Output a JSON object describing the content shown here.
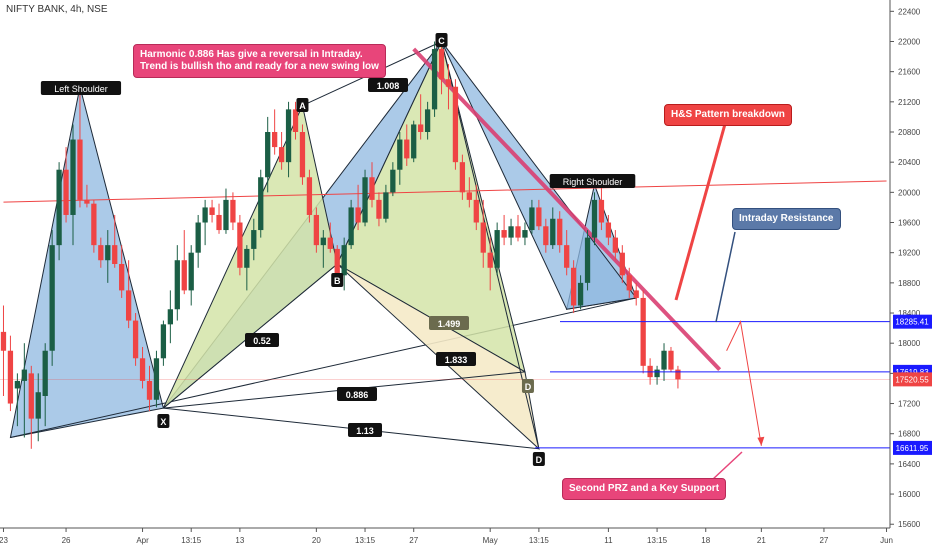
{
  "header": {
    "symbol_title": "NIFTY BANK, 4h, NSE"
  },
  "callouts": {
    "harmonic": "Harmonic 0.886 Has give a reversal in Intraday.\nTrend is bullish tho and ready for a new swing low",
    "hs_breakdown": "H&S Pattern breakdown",
    "intraday_resistance": "Intraday Resistance",
    "second_prz": "Second PRZ and a Key Support"
  },
  "chart_data": {
    "type": "candlestick",
    "title": "NIFTY BANK, 4h, NSE",
    "y_axis": {
      "side": "right",
      "ticks": [
        15600,
        16000,
        16400,
        16800,
        17200,
        17600,
        18000,
        18400,
        18800,
        19200,
        19600,
        20000,
        20400,
        20800,
        21200,
        21600,
        22000,
        22400
      ],
      "ylim": [
        15550,
        22550
      ]
    },
    "x_axis": {
      "tick_labels": [
        "23",
        "26",
        "Apr",
        "13:15",
        "13",
        "20",
        "13:15",
        "27",
        "May",
        "13:15",
        "11",
        "13:15",
        "18",
        "21",
        "27",
        "Jun"
      ],
      "tick_bars": [
        0,
        9,
        20,
        27,
        34,
        45,
        52,
        59,
        70,
        77,
        87,
        94,
        101,
        109,
        118,
        127
      ]
    },
    "candles": [
      {
        "o": 18150,
        "h": 18500,
        "l": 17300,
        "c": 17900
      },
      {
        "o": 17900,
        "h": 18100,
        "l": 17100,
        "c": 17200
      },
      {
        "o": 17400,
        "h": 17600,
        "l": 16900,
        "c": 17500
      },
      {
        "o": 17500,
        "h": 18000,
        "l": 16750,
        "c": 17650
      },
      {
        "o": 17600,
        "h": 17700,
        "l": 16600,
        "c": 17000
      },
      {
        "o": 17000,
        "h": 17600,
        "l": 16700,
        "c": 17350
      },
      {
        "o": 17300,
        "h": 18000,
        "l": 16900,
        "c": 17900
      },
      {
        "o": 17900,
        "h": 19500,
        "l": 17700,
        "c": 19300
      },
      {
        "o": 19300,
        "h": 20400,
        "l": 19100,
        "c": 20300
      },
      {
        "o": 20300,
        "h": 20600,
        "l": 19600,
        "c": 19700
      },
      {
        "o": 19700,
        "h": 20900,
        "l": 19300,
        "c": 20700
      },
      {
        "o": 20700,
        "h": 21400,
        "l": 19800,
        "c": 19900
      },
      {
        "o": 19900,
        "h": 20100,
        "l": 19800,
        "c": 19850
      },
      {
        "o": 19850,
        "h": 19900,
        "l": 19200,
        "c": 19300
      },
      {
        "o": 19300,
        "h": 19400,
        "l": 19000,
        "c": 19100
      },
      {
        "o": 19100,
        "h": 19500,
        "l": 18800,
        "c": 19300
      },
      {
        "o": 19300,
        "h": 19700,
        "l": 19000,
        "c": 19050
      },
      {
        "o": 19050,
        "h": 19300,
        "l": 18600,
        "c": 18700
      },
      {
        "o": 18700,
        "h": 19100,
        "l": 18200,
        "c": 18300
      },
      {
        "o": 18300,
        "h": 18400,
        "l": 17700,
        "c": 17800
      },
      {
        "o": 17800,
        "h": 17950,
        "l": 17400,
        "c": 17500
      },
      {
        "o": 17500,
        "h": 17700,
        "l": 17100,
        "c": 17250
      },
      {
        "o": 17250,
        "h": 17900,
        "l": 17150,
        "c": 17800
      },
      {
        "o": 17800,
        "h": 18300,
        "l": 17700,
        "c": 18250
      },
      {
        "o": 18250,
        "h": 18700,
        "l": 18000,
        "c": 18450
      },
      {
        "o": 18450,
        "h": 19300,
        "l": 18300,
        "c": 19100
      },
      {
        "o": 19100,
        "h": 19500,
        "l": 18650,
        "c": 18700
      },
      {
        "o": 18700,
        "h": 19300,
        "l": 18500,
        "c": 19200
      },
      {
        "o": 19200,
        "h": 19700,
        "l": 19000,
        "c": 19600
      },
      {
        "o": 19600,
        "h": 19900,
        "l": 19300,
        "c": 19800
      },
      {
        "o": 19800,
        "h": 19900,
        "l": 19600,
        "c": 19700
      },
      {
        "o": 19700,
        "h": 19850,
        "l": 19450,
        "c": 19500
      },
      {
        "o": 19500,
        "h": 20050,
        "l": 19450,
        "c": 19900
      },
      {
        "o": 19900,
        "h": 20000,
        "l": 19500,
        "c": 19600
      },
      {
        "o": 19600,
        "h": 19700,
        "l": 18900,
        "c": 19000
      },
      {
        "o": 19000,
        "h": 19300,
        "l": 18700,
        "c": 19250
      },
      {
        "o": 19250,
        "h": 19650,
        "l": 19100,
        "c": 19500
      },
      {
        "o": 19500,
        "h": 20300,
        "l": 19400,
        "c": 20200
      },
      {
        "o": 20200,
        "h": 21000,
        "l": 20000,
        "c": 20800
      },
      {
        "o": 20800,
        "h": 21100,
        "l": 20500,
        "c": 20600
      },
      {
        "o": 20600,
        "h": 20800,
        "l": 20300,
        "c": 20400
      },
      {
        "o": 20400,
        "h": 21200,
        "l": 20200,
        "c": 21100
      },
      {
        "o": 21100,
        "h": 21200,
        "l": 20700,
        "c": 20800
      },
      {
        "o": 20800,
        "h": 20900,
        "l": 20100,
        "c": 20200
      },
      {
        "o": 20200,
        "h": 20300,
        "l": 19600,
        "c": 19700
      },
      {
        "o": 19700,
        "h": 19800,
        "l": 19200,
        "c": 19300
      },
      {
        "o": 19300,
        "h": 19500,
        "l": 19000,
        "c": 19400
      },
      {
        "o": 19400,
        "h": 19600,
        "l": 19200,
        "c": 19250
      },
      {
        "o": 19250,
        "h": 19300,
        "l": 18800,
        "c": 18900
      },
      {
        "o": 18900,
        "h": 19400,
        "l": 18700,
        "c": 19300
      },
      {
        "o": 19300,
        "h": 19900,
        "l": 19250,
        "c": 19800
      },
      {
        "o": 19800,
        "h": 20100,
        "l": 19500,
        "c": 19600
      },
      {
        "o": 19600,
        "h": 20300,
        "l": 19550,
        "c": 20200
      },
      {
        "o": 20200,
        "h": 20400,
        "l": 19800,
        "c": 19900
      },
      {
        "o": 19900,
        "h": 20000,
        "l": 19550,
        "c": 19650
      },
      {
        "o": 19650,
        "h": 20100,
        "l": 19600,
        "c": 20000
      },
      {
        "o": 20000,
        "h": 20400,
        "l": 19950,
        "c": 20300
      },
      {
        "o": 20300,
        "h": 20800,
        "l": 20100,
        "c": 20700
      },
      {
        "o": 20700,
        "h": 20900,
        "l": 20350,
        "c": 20450
      },
      {
        "o": 20450,
        "h": 20950,
        "l": 20400,
        "c": 20900
      },
      {
        "o": 20900,
        "h": 21300,
        "l": 20700,
        "c": 20800
      },
      {
        "o": 20800,
        "h": 21200,
        "l": 20700,
        "c": 21100
      },
      {
        "o": 21100,
        "h": 22000,
        "l": 21000,
        "c": 21900
      },
      {
        "o": 21900,
        "h": 22000,
        "l": 21300,
        "c": 21500
      },
      {
        "o": 21500,
        "h": 21700,
        "l": 21100,
        "c": 21400
      },
      {
        "o": 21400,
        "h": 21500,
        "l": 20300,
        "c": 20400
      },
      {
        "o": 20400,
        "h": 20500,
        "l": 19900,
        "c": 20000
      },
      {
        "o": 20000,
        "h": 20200,
        "l": 19800,
        "c": 19900
      },
      {
        "o": 19900,
        "h": 20100,
        "l": 19500,
        "c": 19600
      },
      {
        "o": 19600,
        "h": 19900,
        "l": 19000,
        "c": 19200
      },
      {
        "o": 19200,
        "h": 19400,
        "l": 18700,
        "c": 19000
      },
      {
        "o": 19000,
        "h": 19600,
        "l": 18900,
        "c": 19500
      },
      {
        "o": 19500,
        "h": 19700,
        "l": 19300,
        "c": 19400
      },
      {
        "o": 19400,
        "h": 19650,
        "l": 19300,
        "c": 19550
      },
      {
        "o": 19550,
        "h": 19700,
        "l": 19350,
        "c": 19400
      },
      {
        "o": 19400,
        "h": 19600,
        "l": 19300,
        "c": 19500
      },
      {
        "o": 19500,
        "h": 19900,
        "l": 19450,
        "c": 19800
      },
      {
        "o": 19800,
        "h": 19900,
        "l": 19500,
        "c": 19550
      },
      {
        "o": 19550,
        "h": 19650,
        "l": 19200,
        "c": 19300
      },
      {
        "o": 19300,
        "h": 19800,
        "l": 19250,
        "c": 19650
      },
      {
        "o": 19650,
        "h": 19750,
        "l": 19200,
        "c": 19300
      },
      {
        "o": 19300,
        "h": 19500,
        "l": 18900,
        "c": 19000
      },
      {
        "o": 19000,
        "h": 19100,
        "l": 18400,
        "c": 18500
      },
      {
        "o": 18500,
        "h": 18900,
        "l": 18450,
        "c": 18800
      },
      {
        "o": 18800,
        "h": 19500,
        "l": 18700,
        "c": 19400
      },
      {
        "o": 19400,
        "h": 20000,
        "l": 19300,
        "c": 19900
      },
      {
        "o": 19900,
        "h": 20100,
        "l": 19500,
        "c": 19600
      },
      {
        "o": 19600,
        "h": 19700,
        "l": 19300,
        "c": 19400
      },
      {
        "o": 19400,
        "h": 19500,
        "l": 19100,
        "c": 19200
      },
      {
        "o": 19200,
        "h": 19300,
        "l": 18800,
        "c": 18900
      },
      {
        "o": 18900,
        "h": 19000,
        "l": 18600,
        "c": 18700
      },
      {
        "o": 18700,
        "h": 18800,
        "l": 18500,
        "c": 18600
      },
      {
        "o": 18600,
        "h": 18700,
        "l": 17600,
        "c": 17700
      },
      {
        "o": 17700,
        "h": 17800,
        "l": 17450,
        "c": 17550
      },
      {
        "o": 17550,
        "h": 17700,
        "l": 17450,
        "c": 17650
      },
      {
        "o": 17650,
        "h": 18000,
        "l": 17500,
        "c": 17900
      },
      {
        "o": 17900,
        "h": 17950,
        "l": 17620,
        "c": 17650
      },
      {
        "o": 17650,
        "h": 17700,
        "l": 17400,
        "c": 17520
      }
    ],
    "patterns": {
      "harmonic_1": {
        "points": [
          {
            "label": "X",
            "bar": 23,
            "price": 17140
          },
          {
            "label": "A",
            "bar": 43,
            "price": 21150
          },
          {
            "label": "B",
            "bar": 48,
            "price": 19050
          },
          {
            "label": "C",
            "bar": 63,
            "price": 22000
          },
          {
            "label": "D",
            "bar": 75,
            "price": 17620
          }
        ],
        "ratios": [
          "0.52",
          "1.499",
          "0.886"
        ]
      },
      "harmonic_2": {
        "points": [
          {
            "label": "X",
            "bar": 23,
            "price": 17140
          },
          {
            "label": "B",
            "bar": 48,
            "price": 19050
          },
          {
            "label": "C",
            "bar": 63,
            "price": 22000
          },
          {
            "label": "D",
            "bar": 77,
            "price": 16600
          }
        ],
        "ratios": [
          "1.008",
          "1.833",
          "1.13"
        ]
      },
      "head_and_shoulders": {
        "labels": [
          "Left Shoulder",
          "Right Shoulder"
        ],
        "left_shoulder": {
          "bar": 11,
          "price": 21400
        },
        "right_shoulder": {
          "bar": 85,
          "price": 20100
        }
      }
    },
    "horizontal_levels": [
      {
        "price": 18285.41,
        "label": "18285.41",
        "color": "#1a1aff"
      },
      {
        "price": 17619.83,
        "label": "17619.83",
        "color": "#1a1aff"
      },
      {
        "price": 16611.95,
        "label": "16611.95",
        "color": "#1a1aff"
      },
      {
        "price": 17520.55,
        "label": "17520.55",
        "color": "#ef4444"
      }
    ],
    "trendline_red": {
      "from": {
        "bar": 0,
        "price": 19870
      },
      "to": {
        "bar": 127,
        "price": 20150
      }
    },
    "grid": false,
    "colors": {
      "up": "#1b5e45",
      "down": "#ef4444",
      "harmonic_blue": "#8fb8e0",
      "harmonic_green": "#d4e4a8",
      "harmonic_yellow": "#f5eac8"
    }
  }
}
